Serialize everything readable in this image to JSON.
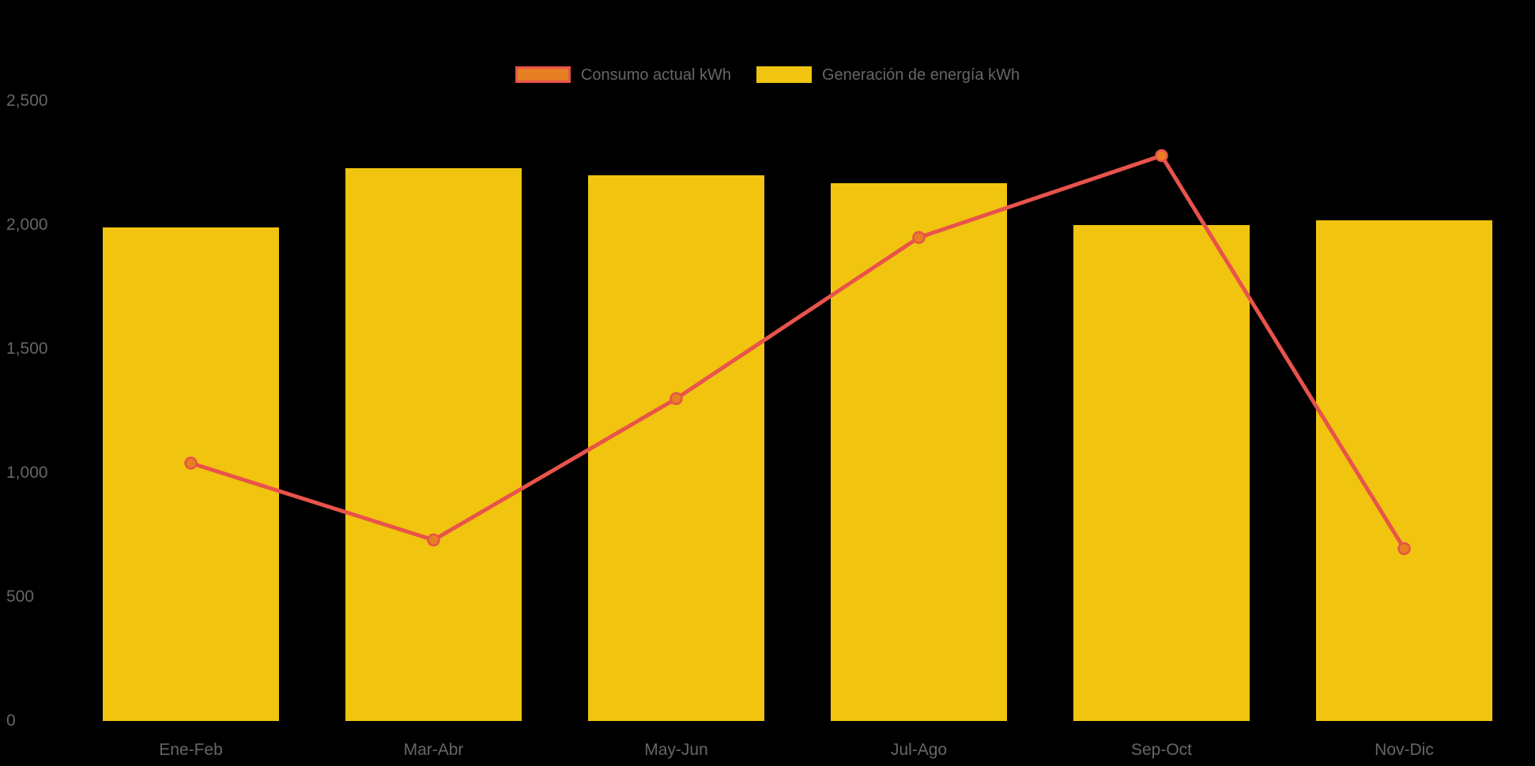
{
  "chart_data": {
    "type": "bar+line",
    "categories": [
      "Ene-Feb",
      "Mar-Abr",
      "May-Jun",
      "Jul-Ago",
      "Sep-Oct",
      "Nov-Dic"
    ],
    "series": [
      {
        "name": "Consumo actual kWh",
        "type": "line",
        "values": [
          1040,
          730,
          1300,
          1950,
          2280,
          695
        ],
        "line_color": "#e8534b",
        "point_fill": "#e67e22"
      },
      {
        "name": "Generación de energía kWh",
        "type": "bar",
        "values": [
          1990,
          2230,
          2200,
          2170,
          2000,
          2020
        ],
        "color": "#f1c40f"
      }
    ],
    "ylim": [
      0,
      2500
    ],
    "yticks": [
      {
        "value": 0,
        "label": "0"
      },
      {
        "value": 500,
        "label": "500"
      },
      {
        "value": 1000,
        "label": "1,000"
      },
      {
        "value": 1500,
        "label": "1,500"
      },
      {
        "value": 2000,
        "label": "2,000"
      },
      {
        "value": 2500,
        "label": "2,500"
      }
    ],
    "grid": false,
    "legend_position": "top",
    "background": "#000000",
    "text_color": "#666666"
  }
}
